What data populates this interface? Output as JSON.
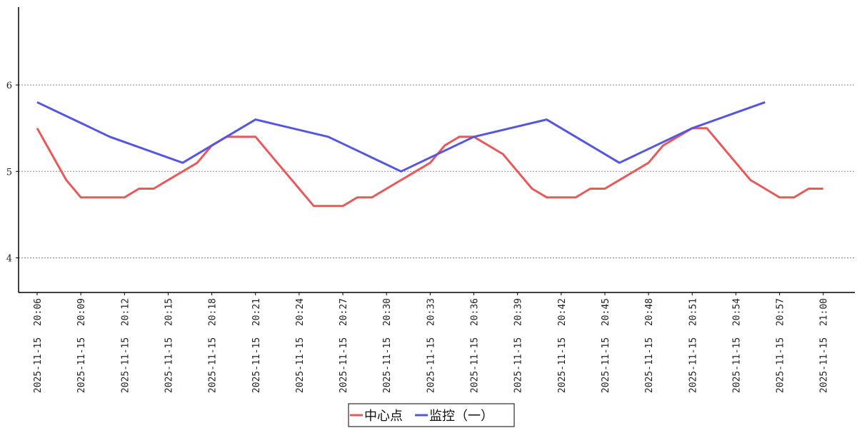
{
  "chart_data": {
    "type": "line",
    "x": [
      "2025-11-15 20:06",
      "2025-11-15 20:09",
      "2025-11-15 20:12",
      "2025-11-15 20:15",
      "2025-11-15 20:18",
      "2025-11-15 20:21",
      "2025-11-15 20:24",
      "2025-11-15 20:27",
      "2025-11-15 20:30",
      "2025-11-15 20:33",
      "2025-11-15 20:36",
      "2025-11-15 20:39",
      "2025-11-15 20:42",
      "2025-11-15 20:45",
      "2025-11-15 20:48",
      "2025-11-15 20:51",
      "2025-11-15 20:54",
      "2025-11-15 20:57",
      "2025-11-15 21:00"
    ],
    "ylim": [
      3.6,
      6.9
    ],
    "yticks": [
      4,
      5,
      6
    ],
    "grid": "horizontal-dashed",
    "legend_position": "bottom-center",
    "series": [
      {
        "name": "中心点",
        "color": "#e85a5a",
        "points": [
          [
            "2025-11-15 20:06",
            5.5
          ],
          [
            "2025-11-15 20:07",
            5.2
          ],
          [
            "2025-11-15 20:08",
            4.9
          ],
          [
            "2025-11-15 20:09",
            4.7
          ],
          [
            "2025-11-15 20:10",
            4.7
          ],
          [
            "2025-11-15 20:11",
            4.7
          ],
          [
            "2025-11-15 20:12",
            4.7
          ],
          [
            "2025-11-15 20:13",
            4.8
          ],
          [
            "2025-11-15 20:14",
            4.8
          ],
          [
            "2025-11-15 20:15",
            4.9
          ],
          [
            "2025-11-15 20:16",
            5.0
          ],
          [
            "2025-11-15 20:17",
            5.1
          ],
          [
            "2025-11-15 20:18",
            5.3
          ],
          [
            "2025-11-15 20:19",
            5.4
          ],
          [
            "2025-11-15 20:20",
            5.4
          ],
          [
            "2025-11-15 20:21",
            5.4
          ],
          [
            "2025-11-15 20:22",
            5.2
          ],
          [
            "2025-11-15 20:23",
            5.0
          ],
          [
            "2025-11-15 20:24",
            4.8
          ],
          [
            "2025-11-15 20:25",
            4.6
          ],
          [
            "2025-11-15 20:26",
            4.6
          ],
          [
            "2025-11-15 20:27",
            4.6
          ],
          [
            "2025-11-15 20:28",
            4.7
          ],
          [
            "2025-11-15 20:29",
            4.7
          ],
          [
            "2025-11-15 20:30",
            4.8
          ],
          [
            "2025-11-15 20:31",
            4.9
          ],
          [
            "2025-11-15 20:32",
            5.0
          ],
          [
            "2025-11-15 20:33",
            5.1
          ],
          [
            "2025-11-15 20:34",
            5.3
          ],
          [
            "2025-11-15 20:35",
            5.4
          ],
          [
            "2025-11-15 20:36",
            5.4
          ],
          [
            "2025-11-15 20:37",
            5.3
          ],
          [
            "2025-11-15 20:38",
            5.2
          ],
          [
            "2025-11-15 20:39",
            5.0
          ],
          [
            "2025-11-15 20:40",
            4.8
          ],
          [
            "2025-11-15 20:41",
            4.7
          ],
          [
            "2025-11-15 20:42",
            4.7
          ],
          [
            "2025-11-15 20:43",
            4.7
          ],
          [
            "2025-11-15 20:44",
            4.8
          ],
          [
            "2025-11-15 20:45",
            4.8
          ],
          [
            "2025-11-15 20:46",
            4.9
          ],
          [
            "2025-11-15 20:47",
            5.0
          ],
          [
            "2025-11-15 20:48",
            5.1
          ],
          [
            "2025-11-15 20:49",
            5.3
          ],
          [
            "2025-11-15 20:50",
            5.4
          ],
          [
            "2025-11-15 20:51",
            5.5
          ],
          [
            "2025-11-15 20:52",
            5.5
          ],
          [
            "2025-11-15 20:53",
            5.3
          ],
          [
            "2025-11-15 20:54",
            5.1
          ],
          [
            "2025-11-15 20:55",
            4.9
          ],
          [
            "2025-11-15 20:56",
            4.8
          ],
          [
            "2025-11-15 20:57",
            4.7
          ],
          [
            "2025-11-15 20:58",
            4.7
          ],
          [
            "2025-11-15 20:59",
            4.8
          ],
          [
            "2025-11-15 21:00",
            4.8
          ]
        ]
      },
      {
        "name": "监控（一）",
        "color": "#5656e0",
        "points": [
          [
            "2025-11-15 20:06",
            5.8
          ],
          [
            "2025-11-15 20:11",
            5.4
          ],
          [
            "2025-11-15 20:16",
            5.1
          ],
          [
            "2025-11-15 20:21",
            5.6
          ],
          [
            "2025-11-15 20:26",
            5.4
          ],
          [
            "2025-11-15 20:31",
            5.0
          ],
          [
            "2025-11-15 20:36",
            5.4
          ],
          [
            "2025-11-15 20:41",
            5.6
          ],
          [
            "2025-11-15 20:46",
            5.1
          ],
          [
            "2025-11-15 20:51",
            5.5
          ],
          [
            "2025-11-15 20:56",
            5.8
          ]
        ]
      }
    ]
  }
}
